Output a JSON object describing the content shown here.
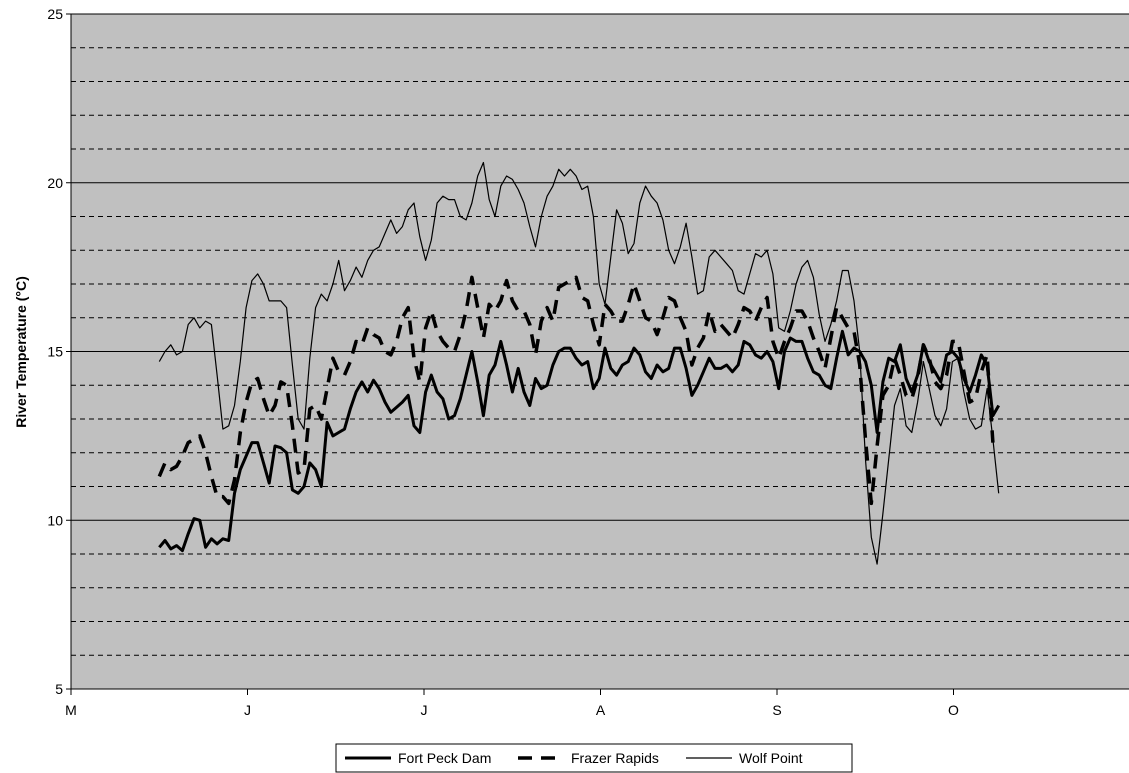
{
  "chart_data": {
    "type": "line",
    "title": "",
    "xlabel": "",
    "ylabel": "River Temperature (°C)",
    "ylim": [
      5,
      25
    ],
    "xlim": [
      0,
      6
    ],
    "yticks": [
      5,
      10,
      15,
      20,
      25
    ],
    "ygrid_major": [
      10,
      15,
      20,
      25
    ],
    "ygrid_minor": [
      6,
      7,
      8,
      9,
      11,
      12,
      13,
      14,
      16,
      17,
      18,
      19,
      21,
      22,
      23,
      24
    ],
    "xticks": [
      {
        "v": 0,
        "label": "M"
      },
      {
        "v": 1,
        "label": "J"
      },
      {
        "v": 2,
        "label": "J"
      },
      {
        "v": 3,
        "label": "A"
      },
      {
        "v": 4,
        "label": "S"
      },
      {
        "v": 5,
        "label": "O"
      }
    ],
    "x_start": 0.5,
    "x_step": 0.0328,
    "plot_background": "#c0c0c0",
    "legend_position": "bottom-center",
    "series": [
      {
        "name": "Fort Peck Dam",
        "style": "thick-solid",
        "values": [
          9.2,
          9.4,
          9.15,
          9.25,
          9.1,
          9.6,
          10.05,
          10.0,
          9.2,
          9.45,
          9.3,
          9.45,
          9.4,
          10.8,
          11.5,
          11.9,
          12.3,
          12.3,
          11.7,
          11.1,
          12.2,
          12.15,
          12.0,
          10.9,
          10.8,
          11.0,
          11.7,
          11.5,
          11.0,
          12.9,
          12.5,
          12.6,
          12.7,
          13.3,
          13.8,
          14.1,
          13.8,
          14.15,
          13.9,
          13.5,
          13.2,
          13.35,
          13.5,
          13.7,
          12.8,
          12.6,
          13.8,
          14.3,
          13.8,
          13.6,
          13.0,
          13.1,
          13.6,
          14.3,
          15.0,
          14.1,
          13.1,
          14.3,
          14.6,
          15.3,
          14.6,
          13.8,
          14.5,
          13.8,
          13.4,
          14.2,
          13.9,
          14.0,
          14.6,
          15.0,
          15.1,
          15.1,
          14.8,
          14.6,
          14.7,
          13.9,
          14.2,
          15.1,
          14.5,
          14.3,
          14.6,
          14.7,
          15.1,
          14.9,
          14.4,
          14.2,
          14.6,
          14.4,
          14.5,
          15.1,
          15.1,
          14.5,
          13.7,
          14.0,
          14.4,
          14.8,
          14.5,
          14.5,
          14.6,
          14.4,
          14.6,
          15.3,
          15.2,
          14.9,
          14.8,
          15.0,
          14.7,
          13.9,
          15.0,
          15.4,
          15.3,
          15.3,
          14.8,
          14.4,
          14.3,
          14.0,
          13.9,
          14.8,
          15.6,
          14.9,
          15.1,
          15.0,
          14.7,
          14.0,
          12.6,
          14.1,
          14.8,
          14.7,
          15.2,
          14.2,
          13.8,
          14.3,
          15.2,
          14.7,
          14.4,
          14.1,
          14.9,
          15.0,
          14.8,
          14.2,
          13.8,
          14.3,
          14.9,
          14.6,
          13.1,
          13.4
        ]
      },
      {
        "name": "Frazer Rapids",
        "style": "thick-dashed",
        "values": [
          11.3,
          11.7,
          11.5,
          11.6,
          11.9,
          12.3,
          12.4,
          12.5,
          12.0,
          11.3,
          10.7,
          10.7,
          10.5,
          11.2,
          12.6,
          13.5,
          14.1,
          14.2,
          13.6,
          13.1,
          13.4,
          14.1,
          14.0,
          12.8,
          11.4,
          11.5,
          13.3,
          13.4,
          13.0,
          13.9,
          14.8,
          14.4,
          14.3,
          14.7,
          15.3,
          15.2,
          15.7,
          15.5,
          15.4,
          15.0,
          14.9,
          15.3,
          16.0,
          16.3,
          14.8,
          14.1,
          15.7,
          16.2,
          15.6,
          15.3,
          15.1,
          15.0,
          15.5,
          16.2,
          17.2,
          16.3,
          15.4,
          16.4,
          16.2,
          16.5,
          17.1,
          16.5,
          16.2,
          16.2,
          15.8,
          14.9,
          15.9,
          16.3,
          15.9,
          16.9,
          17.0,
          17.1,
          17.2,
          16.6,
          16.5,
          15.8,
          15.2,
          16.4,
          16.2,
          15.9,
          15.9,
          16.4,
          17.0,
          16.5,
          16.0,
          15.9,
          15.5,
          16.0,
          16.6,
          16.5,
          16.0,
          15.6,
          14.6,
          15.1,
          15.4,
          16.2,
          15.6,
          15.8,
          15.6,
          15.4,
          15.8,
          16.3,
          16.2,
          15.9,
          16.3,
          16.6,
          15.3,
          14.8,
          15.3,
          15.7,
          16.2,
          16.2,
          15.9,
          15.4,
          15.0,
          14.5,
          15.4,
          16.3,
          16.0,
          15.7,
          15.6,
          14.6,
          12.4,
          10.5,
          12.2,
          13.7,
          14.0,
          14.8,
          14.3,
          13.7,
          13.6,
          14.2,
          15.2,
          14.8,
          14.1,
          13.9,
          14.3,
          15.3,
          15.3,
          14.4,
          13.5,
          13.6,
          14.4,
          14.9,
          12.3
        ]
      },
      {
        "name": "Wolf Point",
        "style": "thin-solid",
        "values": [
          14.7,
          15.0,
          15.2,
          14.9,
          15.0,
          15.8,
          16.0,
          15.7,
          15.9,
          15.8,
          14.3,
          12.7,
          12.8,
          13.4,
          14.7,
          16.3,
          17.1,
          17.3,
          17.0,
          16.5,
          16.5,
          16.5,
          16.3,
          14.6,
          13.0,
          12.7,
          14.8,
          16.3,
          16.7,
          16.5,
          17.0,
          17.7,
          16.8,
          17.1,
          17.5,
          17.2,
          17.7,
          18.0,
          18.1,
          18.5,
          18.9,
          18.5,
          18.7,
          19.2,
          19.4,
          18.4,
          17.7,
          18.3,
          19.4,
          19.6,
          19.5,
          19.5,
          19.0,
          18.9,
          19.4,
          20.2,
          20.6,
          19.5,
          19.0,
          19.9,
          20.2,
          20.1,
          19.8,
          19.4,
          18.7,
          18.1,
          19.0,
          19.6,
          19.9,
          20.4,
          20.2,
          20.4,
          20.2,
          19.8,
          19.9,
          19.0,
          17.0,
          16.4,
          17.8,
          19.2,
          18.8,
          17.9,
          18.2,
          19.4,
          19.9,
          19.6,
          19.4,
          18.9,
          18.0,
          17.6,
          18.1,
          18.8,
          17.8,
          16.7,
          16.8,
          17.8,
          18.0,
          17.8,
          17.6,
          17.4,
          16.8,
          16.7,
          17.3,
          17.9,
          17.8,
          18.0,
          17.3,
          15.7,
          15.6,
          16.2,
          17.0,
          17.5,
          17.7,
          17.2,
          16.1,
          15.3,
          15.8,
          16.5,
          17.4,
          17.4,
          16.5,
          15.0,
          11.8,
          9.5,
          8.7,
          10.2,
          11.8,
          13.4,
          13.9,
          12.8,
          12.6,
          13.5,
          14.7,
          13.9,
          13.1,
          12.8,
          13.3,
          14.7,
          14.8,
          13.8,
          13.0,
          12.7,
          12.8,
          13.9,
          12.4,
          10.8
        ]
      }
    ]
  }
}
